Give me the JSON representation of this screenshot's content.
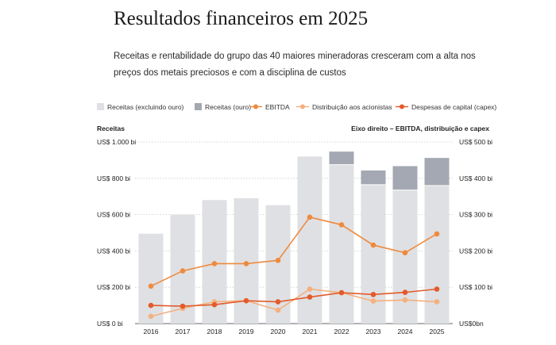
{
  "header": {
    "title": "Resultados financeiros em 2025",
    "subtitle": "Receitas e rentabilidade do grupo das 40 maiores mineradoras cresceram com a alta nos preços dos metais preciosos e com a disciplina de custos"
  },
  "colors": {
    "receitas_excl_ouro": "#dfe0e3",
    "receitas_ouro": "#a3a8b2",
    "ebitda": "#ee8a3e",
    "distribuicao": "#f4b07e",
    "capex": "#e25b2a",
    "grid": "#c9c9c9",
    "axis": "#666666"
  },
  "chart_data": {
    "type": "bar",
    "left_axis_title": "Receitas",
    "right_axis_title": "Eixo direito – EBITDA, distribuição e capex",
    "categories": [
      "2016",
      "2017",
      "2018",
      "2019",
      "2020",
      "2021",
      "2022",
      "2023",
      "2024",
      "2025"
    ],
    "left_ticks": [
      {
        "value": 0,
        "label": "US$ 0 bi"
      },
      {
        "value": 200,
        "label": "US$ 200 bi"
      },
      {
        "value": 400,
        "label": "US$ 400 bi"
      },
      {
        "value": 600,
        "label": "US$ 600 bi"
      },
      {
        "value": 800,
        "label": "US$ 800 bi"
      },
      {
        "value": 1000,
        "label": "US$ 1.000 bi"
      }
    ],
    "right_ticks": [
      {
        "value": 0,
        "label": "US$0bn"
      },
      {
        "value": 100,
        "label": "US$ 100 bi"
      },
      {
        "value": 200,
        "label": "US$ 200 bi"
      },
      {
        "value": 300,
        "label": "US$ 300 bi"
      },
      {
        "value": 400,
        "label": "US$ 400 bi"
      },
      {
        "value": 500,
        "label": "US$ 500 bi"
      }
    ],
    "ylim_left": [
      0,
      1000
    ],
    "ylim_right": [
      0,
      500
    ],
    "stacked_bars": [
      {
        "key": "excl",
        "name": "Receitas (excluindo ouro)",
        "values": [
          495,
          600,
          680,
          690,
          652,
          920,
          875,
          765,
          735,
          760
        ]
      },
      {
        "key": "ouro",
        "name": "Receitas (ouro)",
        "values": [
          0,
          0,
          0,
          0,
          0,
          0,
          72,
          78,
          132,
          152
        ]
      }
    ],
    "lines": [
      {
        "key": "ebitda",
        "name": "EBITDA",
        "values": [
          103,
          145,
          165,
          165,
          174,
          293,
          272,
          216,
          195,
          247
        ]
      },
      {
        "key": "distribuicao",
        "name": "Distribuição aos acionistas",
        "values": [
          20,
          42,
          60,
          63,
          37,
          95,
          85,
          62,
          65,
          60
        ]
      },
      {
        "key": "capex",
        "name": "Despesas de capital (capex)",
        "values": [
          50,
          48,
          52,
          63,
          60,
          73,
          85,
          80,
          86,
          95
        ]
      }
    ],
    "grid": true,
    "legend_position": "top"
  }
}
